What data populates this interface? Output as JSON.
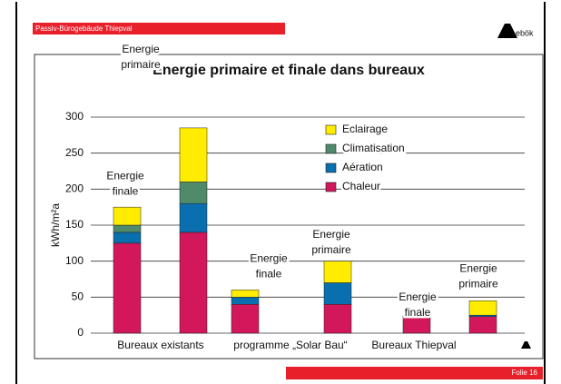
{
  "header": "Passiv-Bürogebäude Thiepval",
  "logo": "ebök",
  "footer": "Folie 16",
  "chart_data": {
    "type": "stacked-bar",
    "title": "Energie primaire et finale dans bureaux",
    "y_label": "kWh/m²a",
    "groups": [
      "Bureaux existants",
      "programme „Solar Bau“",
      "Bureaux Thiepval"
    ],
    "bar_labels": [
      [
        "Energie",
        "finale"
      ],
      [
        "Energie",
        "primaire"
      ],
      [
        "Energie",
        "finale"
      ],
      [
        "Energie",
        "primaire"
      ],
      [
        "Energie",
        "finale"
      ],
      [
        "Energie",
        "primaire"
      ]
    ],
    "series": [
      {
        "name": "Chaleur",
        "color": "#d2175a",
        "values": [
          125,
          140,
          40,
          40,
          22,
          23
        ]
      },
      {
        "name": "Aération",
        "color": "#0a6fae",
        "values": [
          15,
          40,
          10,
          30,
          2,
          2
        ]
      },
      {
        "name": "Climatisation",
        "color": "#4f8a6a",
        "values": [
          10,
          30,
          0,
          0,
          0,
          0
        ]
      },
      {
        "name": "Eclairage",
        "color": "#ffec00",
        "values": [
          25,
          75,
          10,
          30,
          0,
          20
        ]
      }
    ],
    "ylim": [
      0,
      300
    ],
    "yticks": [
      0,
      50,
      100,
      150,
      200,
      250,
      300
    ],
    "grid": true
  }
}
